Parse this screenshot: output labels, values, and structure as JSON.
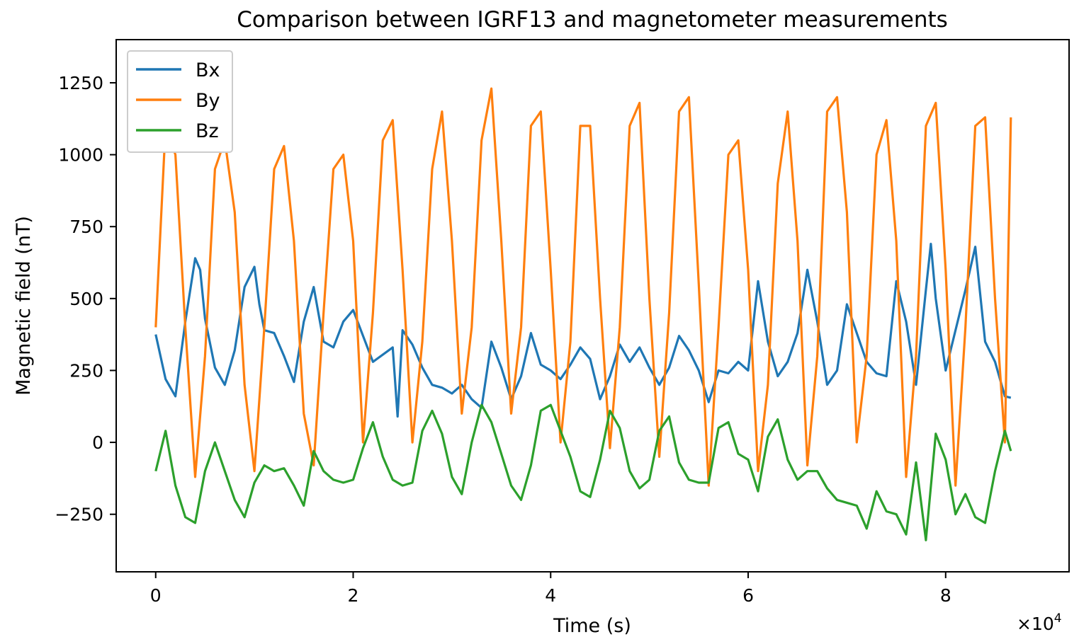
{
  "chart_data": {
    "type": "line",
    "title": "Comparison between IGRF13 and magnetometer measurements",
    "xlabel": "Time (s)",
    "ylabel": "Magnetic field (nT)",
    "x_multiplier_label": "×10",
    "x_multiplier_exp": "4",
    "xlim": [
      -0.4,
      9.25
    ],
    "ylim": [
      -450,
      1400
    ],
    "xticks": [
      0,
      2,
      4,
      6,
      8
    ],
    "xtick_labels": [
      "0",
      "2",
      "4",
      "6",
      "8"
    ],
    "yticks": [
      -250,
      0,
      250,
      500,
      750,
      1000,
      1250
    ],
    "ytick_labels": [
      "−250",
      "0",
      "250",
      "500",
      "750",
      "1000",
      "1250"
    ],
    "grid": false,
    "legend_position": "top-left",
    "series": [
      {
        "name": "Bx",
        "color": "#1f77b4",
        "x": [
          0,
          0.1,
          0.2,
          0.3,
          0.4,
          0.45,
          0.5,
          0.6,
          0.7,
          0.8,
          0.9,
          1.0,
          1.05,
          1.1,
          1.2,
          1.3,
          1.4,
          1.5,
          1.6,
          1.7,
          1.8,
          1.9,
          2.0,
          2.2,
          2.4,
          2.45,
          2.5,
          2.6,
          2.7,
          2.8,
          2.9,
          3.0,
          3.1,
          3.2,
          3.3,
          3.4,
          3.5,
          3.6,
          3.7,
          3.8,
          3.9,
          4.0,
          4.1,
          4.2,
          4.3,
          4.4,
          4.5,
          4.6,
          4.7,
          4.8,
          4.9,
          5.0,
          5.1,
          5.2,
          5.3,
          5.4,
          5.5,
          5.6,
          5.7,
          5.8,
          5.9,
          6.0,
          6.1,
          6.2,
          6.3,
          6.4,
          6.5,
          6.6,
          6.7,
          6.8,
          6.9,
          7.0,
          7.1,
          7.2,
          7.3,
          7.4,
          7.5,
          7.6,
          7.7,
          7.8,
          7.85,
          7.9,
          8.0,
          8.1,
          8.2,
          8.3,
          8.4,
          8.5,
          8.6,
          8.66
        ],
        "y": [
          375,
          220,
          160,
          420,
          640,
          600,
          430,
          260,
          200,
          320,
          540,
          610,
          480,
          390,
          380,
          300,
          210,
          420,
          540,
          350,
          330,
          420,
          460,
          280,
          330,
          90,
          390,
          340,
          260,
          200,
          190,
          170,
          200,
          150,
          120,
          350,
          260,
          150,
          230,
          380,
          270,
          250,
          220,
          270,
          330,
          290,
          150,
          230,
          340,
          280,
          330,
          260,
          200,
          260,
          370,
          320,
          250,
          140,
          250,
          240,
          280,
          250,
          560,
          350,
          230,
          280,
          380,
          600,
          420,
          200,
          250,
          480,
          380,
          280,
          240,
          230,
          560,
          420,
          200,
          530,
          690,
          500,
          250,
          390,
          530,
          680,
          350,
          280,
          160,
          155
        ]
      },
      {
        "name": "By",
        "color": "#ff7f0e",
        "x": [
          0,
          0.1,
          0.2,
          0.3,
          0.4,
          0.5,
          0.6,
          0.7,
          0.8,
          0.9,
          1.0,
          1.1,
          1.2,
          1.3,
          1.4,
          1.5,
          1.6,
          1.7,
          1.8,
          1.9,
          2.0,
          2.1,
          2.2,
          2.3,
          2.4,
          2.5,
          2.6,
          2.7,
          2.8,
          2.9,
          3.0,
          3.1,
          3.2,
          3.3,
          3.4,
          3.5,
          3.6,
          3.7,
          3.8,
          3.9,
          4.0,
          4.1,
          4.2,
          4.3,
          4.4,
          4.5,
          4.6,
          4.7,
          4.8,
          4.9,
          5.0,
          5.1,
          5.2,
          5.3,
          5.4,
          5.5,
          5.6,
          5.7,
          5.8,
          5.9,
          6.0,
          6.1,
          6.2,
          6.3,
          6.4,
          6.5,
          6.6,
          6.7,
          6.8,
          6.9,
          7.0,
          7.1,
          7.2,
          7.3,
          7.4,
          7.5,
          7.6,
          7.7,
          7.8,
          7.9,
          8.0,
          8.1,
          8.2,
          8.3,
          8.4,
          8.5,
          8.6,
          8.66
        ],
        "y": [
          400,
          1100,
          1000,
          400,
          -120,
          300,
          950,
          1050,
          800,
          200,
          -100,
          400,
          950,
          1030,
          700,
          100,
          -80,
          450,
          950,
          1000,
          700,
          0,
          450,
          1050,
          1120,
          600,
          0,
          350,
          950,
          1150,
          700,
          100,
          400,
          1050,
          1230,
          700,
          100,
          400,
          1100,
          1150,
          600,
          0,
          350,
          1100,
          1100,
          500,
          -20,
          400,
          1100,
          1180,
          500,
          -50,
          450,
          1150,
          1200,
          550,
          -150,
          400,
          1000,
          1050,
          600,
          -100,
          200,
          900,
          1150,
          700,
          -80,
          300,
          1150,
          1200,
          800,
          0,
          300,
          1000,
          1120,
          700,
          -120,
          300,
          1100,
          1180,
          600,
          -150,
          400,
          1100,
          1130,
          500,
          0,
          1130
        ]
      },
      {
        "name": "Bz",
        "color": "#2ca02c",
        "x": [
          0,
          0.1,
          0.2,
          0.3,
          0.4,
          0.5,
          0.6,
          0.7,
          0.8,
          0.9,
          1.0,
          1.1,
          1.2,
          1.3,
          1.4,
          1.5,
          1.6,
          1.7,
          1.8,
          1.9,
          2.0,
          2.1,
          2.2,
          2.3,
          2.4,
          2.5,
          2.6,
          2.7,
          2.8,
          2.9,
          3.0,
          3.1,
          3.2,
          3.3,
          3.4,
          3.5,
          3.6,
          3.7,
          3.8,
          3.9,
          4.0,
          4.1,
          4.2,
          4.3,
          4.4,
          4.5,
          4.6,
          4.7,
          4.8,
          4.9,
          5.0,
          5.1,
          5.2,
          5.3,
          5.4,
          5.5,
          5.6,
          5.7,
          5.8,
          5.9,
          6.0,
          6.1,
          6.2,
          6.3,
          6.4,
          6.5,
          6.6,
          6.7,
          6.8,
          6.9,
          7.0,
          7.1,
          7.2,
          7.3,
          7.4,
          7.5,
          7.6,
          7.7,
          7.8,
          7.9,
          8.0,
          8.1,
          8.2,
          8.3,
          8.4,
          8.5,
          8.6,
          8.66
        ],
        "y": [
          -100,
          40,
          -150,
          -260,
          -280,
          -100,
          0,
          -100,
          -200,
          -260,
          -140,
          -80,
          -100,
          -90,
          -150,
          -220,
          -30,
          -100,
          -130,
          -140,
          -130,
          -20,
          70,
          -50,
          -130,
          -150,
          -140,
          40,
          110,
          30,
          -120,
          -180,
          0,
          130,
          70,
          -40,
          -150,
          -200,
          -80,
          110,
          130,
          40,
          -50,
          -170,
          -190,
          -60,
          110,
          50,
          -100,
          -160,
          -130,
          40,
          90,
          -70,
          -130,
          -140,
          -140,
          50,
          70,
          -40,
          -60,
          -170,
          20,
          80,
          -60,
          -130,
          -100,
          -100,
          -160,
          -200,
          -210,
          -220,
          -300,
          -170,
          -240,
          -250,
          -320,
          -70,
          -340,
          30,
          -60,
          -250,
          -180,
          -260,
          -280,
          -100,
          40,
          -30
        ]
      }
    ]
  }
}
